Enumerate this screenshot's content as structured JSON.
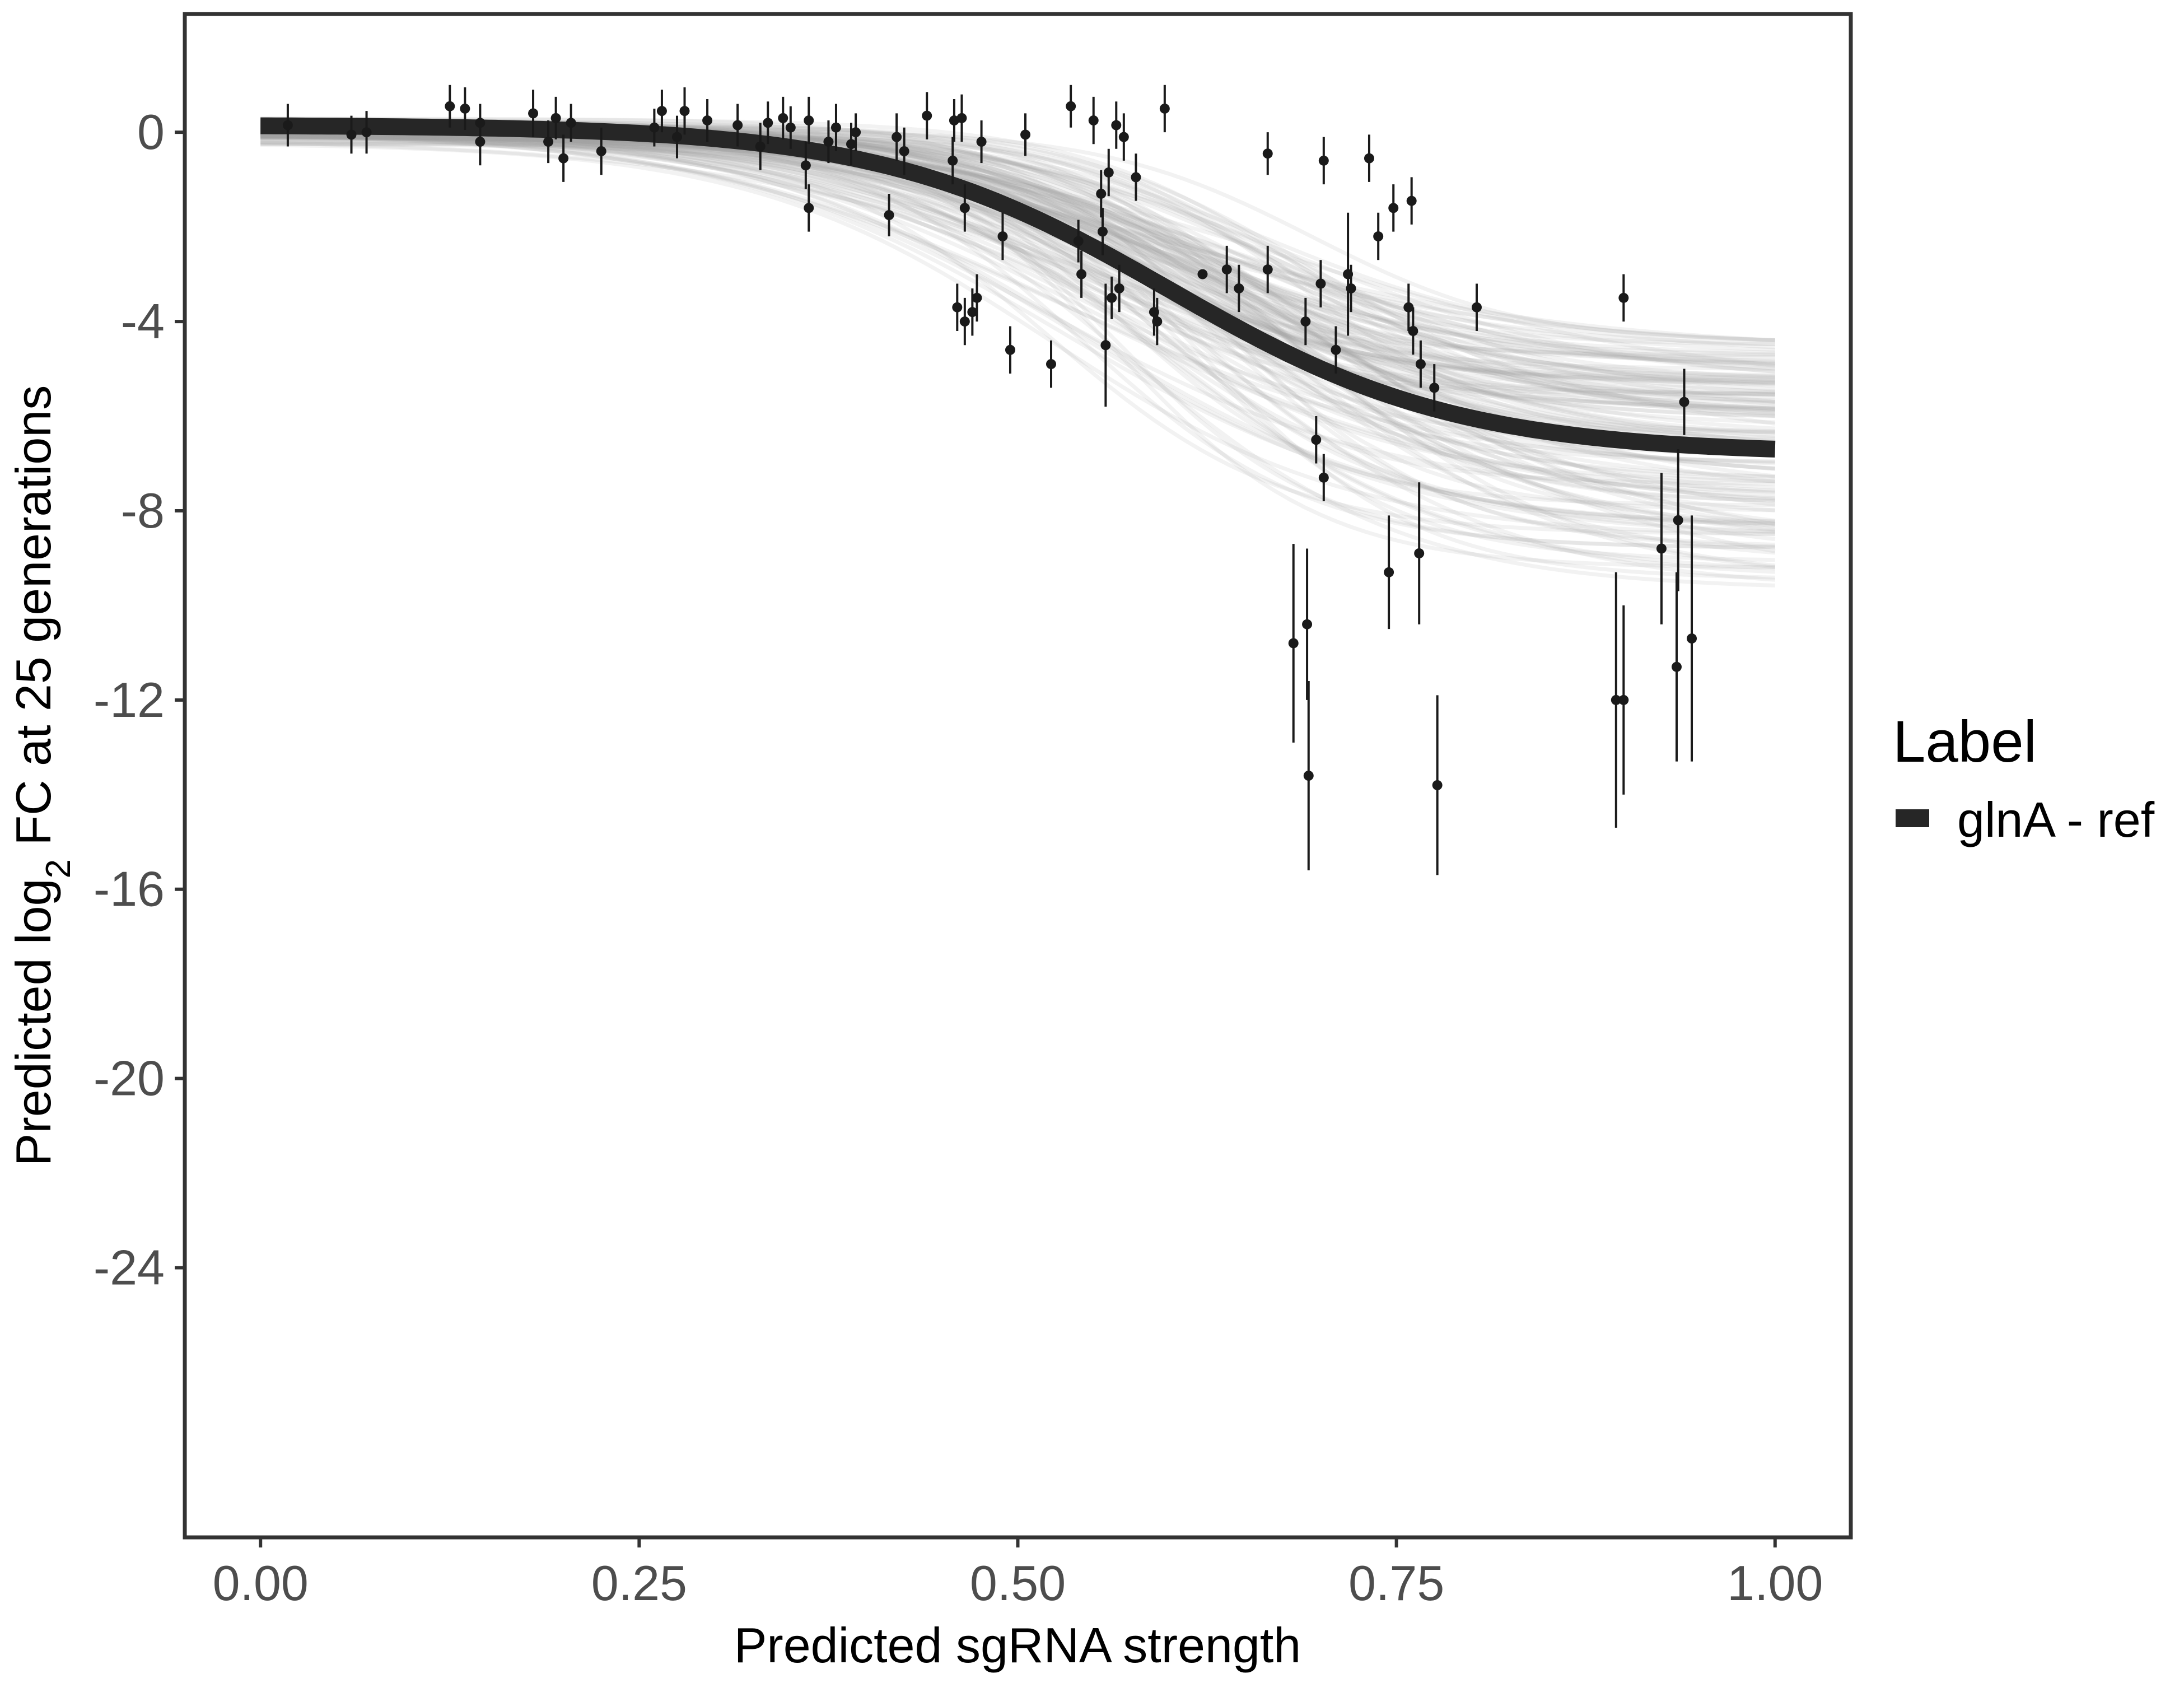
{
  "chart_data": {
    "type": "scatter",
    "xlabel": "Predicted sgRNA strength",
    "ylabel": {
      "prefix": "Predicted  log",
      "subscript": "2",
      "suffix": " FC at 25 generations"
    },
    "xlim": [
      -0.05,
      1.05
    ],
    "ylim": [
      -29.7,
      2.5
    ],
    "x_ticks": [
      0.0,
      0.25,
      0.5,
      0.75,
      1.0
    ],
    "x_tick_labels": [
      "0.00",
      "0.25",
      "0.50",
      "0.75",
      "1.00"
    ],
    "y_ticks": [
      0,
      -4,
      -8,
      -12,
      -16,
      -20,
      -24
    ],
    "y_tick_labels": [
      "0",
      "-4",
      "-8",
      "-12",
      "-16",
      "-20",
      "-24"
    ],
    "grid": false,
    "legend": {
      "title": "Label",
      "position": "right",
      "entries": [
        {
          "label": "glnA - ref",
          "color": "#262626"
        }
      ]
    },
    "fit": {
      "model": "logistic",
      "upper": 0.15,
      "lower": -6.8,
      "midpoint": 0.6,
      "slope": 10.5,
      "x_range": [
        0.0,
        1.0
      ],
      "color": "#262626"
    },
    "posterior_band": {
      "upper_range": [
        0.0,
        0.35
      ],
      "lower_range": [
        -9.8,
        -4.4
      ],
      "midpoint_range": [
        0.52,
        0.7
      ],
      "slope_range": [
        7.0,
        15.0
      ],
      "draws": 140,
      "color": "#a6a6a6"
    },
    "points": [
      {
        "x": 0.018,
        "y": 0.15,
        "err": 0.45
      },
      {
        "x": 0.06,
        "y": -0.05,
        "err": 0.4
      },
      {
        "x": 0.07,
        "y": 0.0,
        "err": 0.45
      },
      {
        "x": 0.125,
        "y": 0.55,
        "err": 0.45
      },
      {
        "x": 0.135,
        "y": 0.5,
        "err": 0.45
      },
      {
        "x": 0.145,
        "y": -0.2,
        "err": 0.5
      },
      {
        "x": 0.145,
        "y": 0.2,
        "err": 0.4
      },
      {
        "x": 0.18,
        "y": 0.4,
        "err": 0.5
      },
      {
        "x": 0.19,
        "y": -0.2,
        "err": 0.45
      },
      {
        "x": 0.195,
        "y": 0.3,
        "err": 0.45
      },
      {
        "x": 0.2,
        "y": -0.55,
        "err": 0.5
      },
      {
        "x": 0.205,
        "y": 0.2,
        "err": 0.4
      },
      {
        "x": 0.225,
        "y": -0.4,
        "err": 0.5
      },
      {
        "x": 0.26,
        "y": 0.1,
        "err": 0.4
      },
      {
        "x": 0.265,
        "y": 0.45,
        "err": 0.45
      },
      {
        "x": 0.275,
        "y": -0.1,
        "err": 0.45
      },
      {
        "x": 0.28,
        "y": 0.45,
        "err": 0.5
      },
      {
        "x": 0.295,
        "y": 0.25,
        "err": 0.45
      },
      {
        "x": 0.315,
        "y": 0.15,
        "err": 0.45
      },
      {
        "x": 0.33,
        "y": -0.3,
        "err": 0.5
      },
      {
        "x": 0.335,
        "y": 0.2,
        "err": 0.45
      },
      {
        "x": 0.345,
        "y": 0.3,
        "err": 0.45
      },
      {
        "x": 0.35,
        "y": 0.1,
        "err": 0.45
      },
      {
        "x": 0.36,
        "y": -0.7,
        "err": 0.5
      },
      {
        "x": 0.362,
        "y": -1.6,
        "err": 0.5
      },
      {
        "x": 0.362,
        "y": 0.25,
        "err": 0.5
      },
      {
        "x": 0.375,
        "y": -0.2,
        "err": 0.45
      },
      {
        "x": 0.38,
        "y": 0.1,
        "err": 0.5
      },
      {
        "x": 0.39,
        "y": -0.25,
        "err": 0.45
      },
      {
        "x": 0.393,
        "y": 0.0,
        "err": 0.4
      },
      {
        "x": 0.415,
        "y": -1.75,
        "err": 0.45
      },
      {
        "x": 0.42,
        "y": -0.1,
        "err": 0.5
      },
      {
        "x": 0.425,
        "y": -0.4,
        "err": 0.5
      },
      {
        "x": 0.44,
        "y": 0.35,
        "err": 0.5
      },
      {
        "x": 0.457,
        "y": -0.6,
        "err": 0.5
      },
      {
        "x": 0.458,
        "y": 0.25,
        "err": 0.45
      },
      {
        "x": 0.46,
        "y": -3.7,
        "err": 0.5
      },
      {
        "x": 0.463,
        "y": 0.3,
        "err": 0.5
      },
      {
        "x": 0.465,
        "y": -4.0,
        "err": 0.5
      },
      {
        "x": 0.465,
        "y": -1.6,
        "err": 0.5
      },
      {
        "x": 0.47,
        "y": -3.8,
        "err": 0.5
      },
      {
        "x": 0.473,
        "y": -3.5,
        "err": 0.5
      },
      {
        "x": 0.476,
        "y": -0.2,
        "err": 0.45
      },
      {
        "x": 0.49,
        "y": -2.2,
        "err": 0.5
      },
      {
        "x": 0.495,
        "y": -4.6,
        "err": 0.5
      },
      {
        "x": 0.505,
        "y": -0.05,
        "err": 0.45
      },
      {
        "x": 0.522,
        "y": -4.9,
        "err": 0.5
      },
      {
        "x": 0.535,
        "y": 0.55,
        "err": 0.45
      },
      {
        "x": 0.54,
        "y": -2.3,
        "err": 0.45
      },
      {
        "x": 0.542,
        "y": -3.0,
        "err": 0.5
      },
      {
        "x": 0.55,
        "y": 0.25,
        "err": 0.5
      },
      {
        "x": 0.555,
        "y": -1.3,
        "err": 0.5
      },
      {
        "x": 0.556,
        "y": -2.1,
        "err": 0.5
      },
      {
        "x": 0.558,
        "y": -4.5,
        "err": 1.3
      },
      {
        "x": 0.56,
        "y": -0.85,
        "err": 0.5
      },
      {
        "x": 0.562,
        "y": -3.5,
        "err": 0.45
      },
      {
        "x": 0.565,
        "y": 0.15,
        "err": 0.5
      },
      {
        "x": 0.567,
        "y": -3.3,
        "err": 0.5
      },
      {
        "x": 0.57,
        "y": -0.1,
        "err": 0.5
      },
      {
        "x": 0.578,
        "y": -0.95,
        "err": 0.5
      },
      {
        "x": 0.59,
        "y": -3.8,
        "err": 0.5
      },
      {
        "x": 0.592,
        "y": -4.0,
        "err": 0.5
      },
      {
        "x": 0.597,
        "y": 0.5,
        "err": 0.5
      },
      {
        "x": 0.622,
        "y": -3.0,
        "err": 0.05
      },
      {
        "x": 0.638,
        "y": -2.9,
        "err": 0.5
      },
      {
        "x": 0.646,
        "y": -3.3,
        "err": 0.5
      },
      {
        "x": 0.665,
        "y": -0.45,
        "err": 0.45
      },
      {
        "x": 0.665,
        "y": -2.9,
        "err": 0.5
      },
      {
        "x": 0.682,
        "y": -10.8,
        "err": 2.1
      },
      {
        "x": 0.69,
        "y": -4.0,
        "err": 0.5
      },
      {
        "x": 0.691,
        "y": -10.4,
        "err": 1.6
      },
      {
        "x": 0.692,
        "y": -13.6,
        "err": 2.0
      },
      {
        "x": 0.697,
        "y": -6.5,
        "err": 0.5
      },
      {
        "x": 0.7,
        "y": -3.2,
        "err": 0.5
      },
      {
        "x": 0.702,
        "y": -0.6,
        "err": 0.5
      },
      {
        "x": 0.702,
        "y": -7.3,
        "err": 0.5
      },
      {
        "x": 0.71,
        "y": -4.6,
        "err": 0.5
      },
      {
        "x": 0.718,
        "y": -3.0,
        "err": 1.3
      },
      {
        "x": 0.72,
        "y": -3.3,
        "err": 0.5
      },
      {
        "x": 0.732,
        "y": -0.55,
        "err": 0.5
      },
      {
        "x": 0.738,
        "y": -2.2,
        "err": 0.5
      },
      {
        "x": 0.745,
        "y": -9.3,
        "err": 1.2
      },
      {
        "x": 0.748,
        "y": -1.6,
        "err": 0.5
      },
      {
        "x": 0.758,
        "y": -3.7,
        "err": 0.5
      },
      {
        "x": 0.76,
        "y": -1.45,
        "err": 0.5
      },
      {
        "x": 0.761,
        "y": -4.2,
        "err": 0.5
      },
      {
        "x": 0.765,
        "y": -8.9,
        "err": 1.5
      },
      {
        "x": 0.766,
        "y": -4.9,
        "err": 0.5
      },
      {
        "x": 0.775,
        "y": -5.4,
        "err": 0.5
      },
      {
        "x": 0.777,
        "y": -13.8,
        "err": 1.9
      },
      {
        "x": 0.803,
        "y": -3.7,
        "err": 0.5
      },
      {
        "x": 0.895,
        "y": -12.0,
        "err": 2.7
      },
      {
        "x": 0.9,
        "y": -3.5,
        "err": 0.5
      },
      {
        "x": 0.9,
        "y": -12.0,
        "err": 2.0
      },
      {
        "x": 0.925,
        "y": -8.8,
        "err": 1.6
      },
      {
        "x": 0.935,
        "y": -11.3,
        "err": 2.0
      },
      {
        "x": 0.936,
        "y": -8.2,
        "err": 1.5
      },
      {
        "x": 0.94,
        "y": -5.7,
        "err": 0.7
      },
      {
        "x": 0.945,
        "y": -10.7,
        "err": 2.6
      }
    ]
  }
}
